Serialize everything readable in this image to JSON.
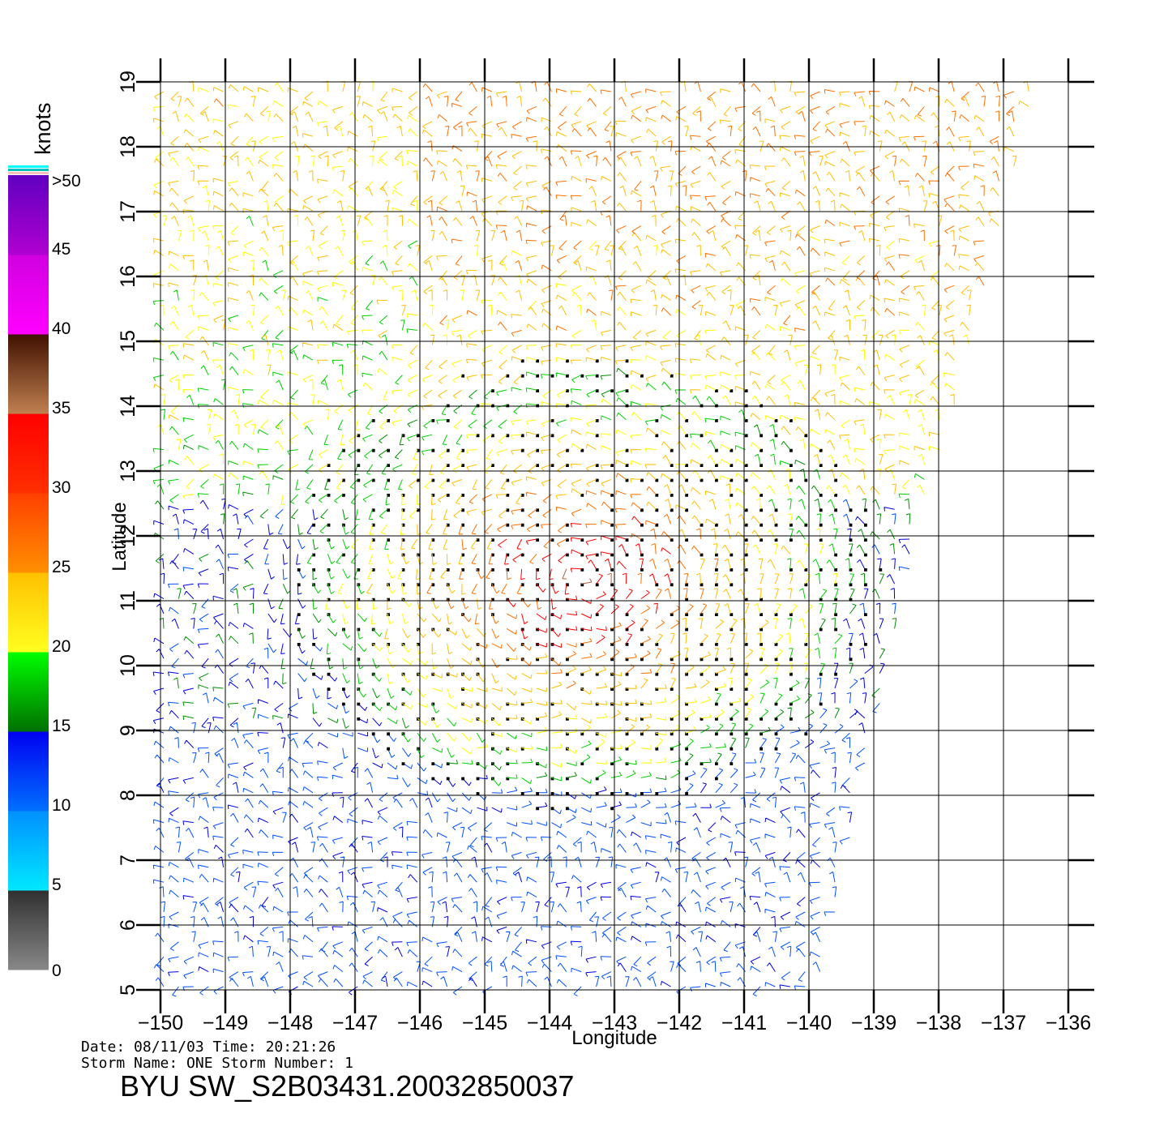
{
  "map": {
    "lon_range": [
      -150,
      -136
    ],
    "lat_range": [
      5,
      19
    ],
    "x_axis_label": "Longitude",
    "y_axis_label": "Latitude",
    "lon_ticks": [
      "-150",
      "-149",
      "-148",
      "-147",
      "-146",
      "-145",
      "-144",
      "-143",
      "-142",
      "-141",
      "-140",
      "-139",
      "-138",
      "-137",
      "-136"
    ],
    "lat_ticks": [
      "5",
      "6",
      "7",
      "8",
      "9",
      "10",
      "11",
      "12",
      "13",
      "14",
      "15",
      "16",
      "17",
      "18",
      "19"
    ],
    "grid": true,
    "swath_edge_right": [
      [
        -136.5,
        19
      ],
      [
        -137.6,
        14.5
      ],
      [
        -138.1,
        13
      ],
      [
        -139.0,
        9
      ],
      [
        -139.4,
        7
      ],
      [
        -139.9,
        5
      ]
    ],
    "storm_center": {
      "lon": -143.5,
      "lat": 11.3
    }
  },
  "colorbar": {
    "unit": "knots",
    "tick_labels": [
      "0",
      "5",
      "10",
      "15",
      "20",
      "25",
      "30",
      "35",
      "40",
      "45",
      ">50"
    ],
    "bands": [
      {
        "from": 0,
        "to": 5,
        "colors": [
          "#888888",
          "#303030"
        ]
      },
      {
        "from": 5,
        "to": 10,
        "colors": [
          "#00e8ff",
          "#0090ff"
        ]
      },
      {
        "from": 10,
        "to": 15,
        "colors": [
          "#0070ff",
          "#0000f0"
        ]
      },
      {
        "from": 15,
        "to": 20,
        "colors": [
          "#007000",
          "#00ff00"
        ]
      },
      {
        "from": 20,
        "to": 25,
        "colors": [
          "#ffff20",
          "#ffc000"
        ]
      },
      {
        "from": 25,
        "to": 30,
        "colors": [
          "#ff9000",
          "#ff4000"
        ]
      },
      {
        "from": 30,
        "to": 35,
        "colors": [
          "#ff3000",
          "#ff0000"
        ]
      },
      {
        "from": 35,
        "to": 40,
        "colors": [
          "#c08050",
          "#401000"
        ]
      },
      {
        "from": 40,
        "to": 45,
        "colors": [
          "#ff00ff",
          "#d000e0"
        ]
      },
      {
        "from": 45,
        "to": 50,
        "colors": [
          "#b000d0",
          "#6000c0"
        ]
      }
    ],
    "top_stripes": [
      "#ffc0c0",
      "#00c0c0",
      "#00ffff"
    ]
  },
  "footer": {
    "date_line": "Date: 08/11/03   Time: 20:21:26",
    "storm_line": "Storm  Name: ONE    Storm  Number: 1",
    "title": "BYU  SW_S2B03431.20032850037"
  }
}
